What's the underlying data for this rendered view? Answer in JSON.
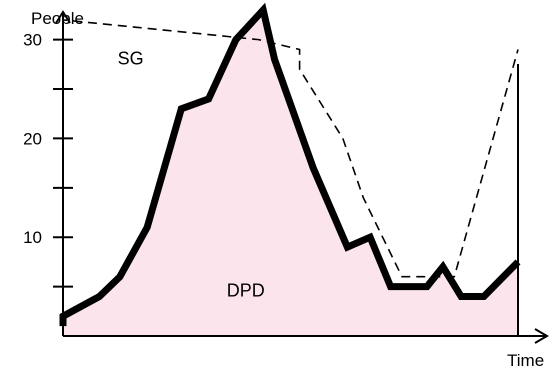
{
  "chart_data": {
    "type": "area",
    "title": "",
    "xlabel": "Time",
    "ylabel": "People",
    "ylim": [
      0,
      33
    ],
    "xlim": [
      0,
      100
    ],
    "yticks": [
      30,
      20,
      10
    ],
    "grid": false,
    "legend": "none",
    "annotations": [
      {
        "text": "SG",
        "x": 12,
        "y": 27.5
      },
      {
        "text": "DPD",
        "x": 36,
        "y": 4
      }
    ],
    "series": [
      {
        "name": "DPD",
        "style": "solid-thick-filled",
        "fill_color": "#fbe4ec",
        "line_color": "#000000",
        "x": [
          0,
          0,
          8,
          12.5,
          18.5,
          26,
          32,
          38,
          44,
          46.5,
          55,
          62.5,
          67.5,
          72,
          80,
          83.5,
          87.5,
          92.5,
          100
        ],
        "y": [
          1,
          2,
          4,
          6,
          11,
          23,
          24,
          30,
          33,
          28,
          17,
          9,
          10,
          5,
          5,
          7,
          4,
          4,
          7.5
        ]
      },
      {
        "name": "SG",
        "style": "dashed",
        "line_color": "#000000",
        "x": [
          0,
          0,
          43,
          52,
          52,
          61.5,
          66,
          74.5,
          82,
          86,
          100
        ],
        "y": [
          31.5,
          32,
          30,
          29,
          27,
          20,
          14,
          6,
          6,
          6,
          29
        ]
      }
    ],
    "colors": {
      "area_fill": "#fbe4ec",
      "line": "#000000"
    }
  }
}
